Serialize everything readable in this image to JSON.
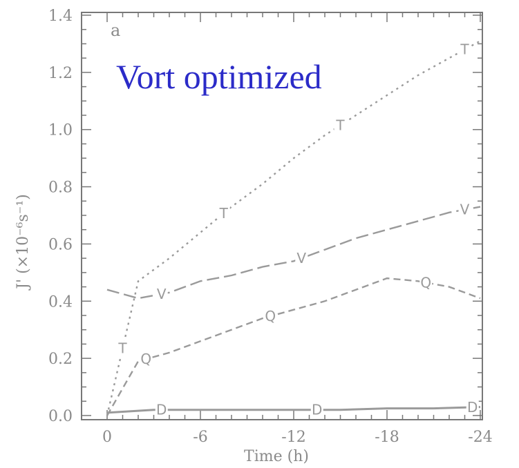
{
  "chart_data": {
    "type": "line",
    "panel_label": "a",
    "annotation": "Vort optimized",
    "xlabel": "Time (h)",
    "ylabel": "J' (×10⁻⁶s⁻¹)",
    "xlim": [
      0,
      -24
    ],
    "ylim": [
      0,
      1.4
    ],
    "x_ticks": [
      0,
      -6,
      -12,
      -18,
      -24
    ],
    "x_tick_labels": [
      "0",
      "-6",
      "-12",
      "-18",
      "-24"
    ],
    "y_ticks": [
      0,
      0.2,
      0.4,
      0.6,
      0.8,
      1.0,
      1.2,
      1.4
    ],
    "y_tick_labels": [
      "0.0",
      "0.2",
      "0.4",
      "0.6",
      "0.8",
      "1.0",
      "1.2",
      "1.4"
    ],
    "series": [
      {
        "marker": "T",
        "style": "dotted",
        "x": [
          0,
          -2,
          -4,
          -6,
          -8,
          -10,
          -12,
          -14,
          -16,
          -18,
          -20,
          -22,
          -24
        ],
        "y": [
          0.0,
          0.47,
          0.55,
          0.64,
          0.73,
          0.81,
          0.9,
          0.98,
          1.05,
          1.12,
          1.19,
          1.25,
          1.31
        ],
        "marker_x": [
          -1,
          -7.5,
          -15,
          -23
        ]
      },
      {
        "marker": "V",
        "style": "long-dash",
        "x": [
          0,
          -2,
          -4,
          -6,
          -8,
          -10,
          -12,
          -14,
          -16,
          -18,
          -20,
          -22,
          -24
        ],
        "y": [
          0.44,
          0.41,
          0.43,
          0.47,
          0.49,
          0.52,
          0.54,
          0.58,
          0.62,
          0.65,
          0.68,
          0.71,
          0.73
        ],
        "marker_x": [
          -3.5,
          -12.5,
          -23
        ]
      },
      {
        "marker": "Q",
        "style": "dashed",
        "x": [
          0,
          -2,
          -4,
          -6,
          -8,
          -10,
          -12,
          -14,
          -16,
          -18,
          -20,
          -22,
          -24
        ],
        "y": [
          0.0,
          0.19,
          0.22,
          0.26,
          0.3,
          0.34,
          0.37,
          0.4,
          0.44,
          0.48,
          0.47,
          0.45,
          0.41
        ],
        "marker_x": [
          -2.5,
          -10.5,
          -20.5
        ]
      },
      {
        "marker": "D",
        "style": "solid",
        "x": [
          0,
          -3,
          -6,
          -9,
          -12,
          -15,
          -18,
          -21,
          -24
        ],
        "y": [
          0.01,
          0.02,
          0.02,
          0.02,
          0.02,
          0.02,
          0.025,
          0.025,
          0.03
        ],
        "marker_x": [
          -3.5,
          -13.5,
          -23.5
        ]
      }
    ],
    "annotation_color": "#2b2bc8",
    "line_color": "#9a9a9a"
  }
}
